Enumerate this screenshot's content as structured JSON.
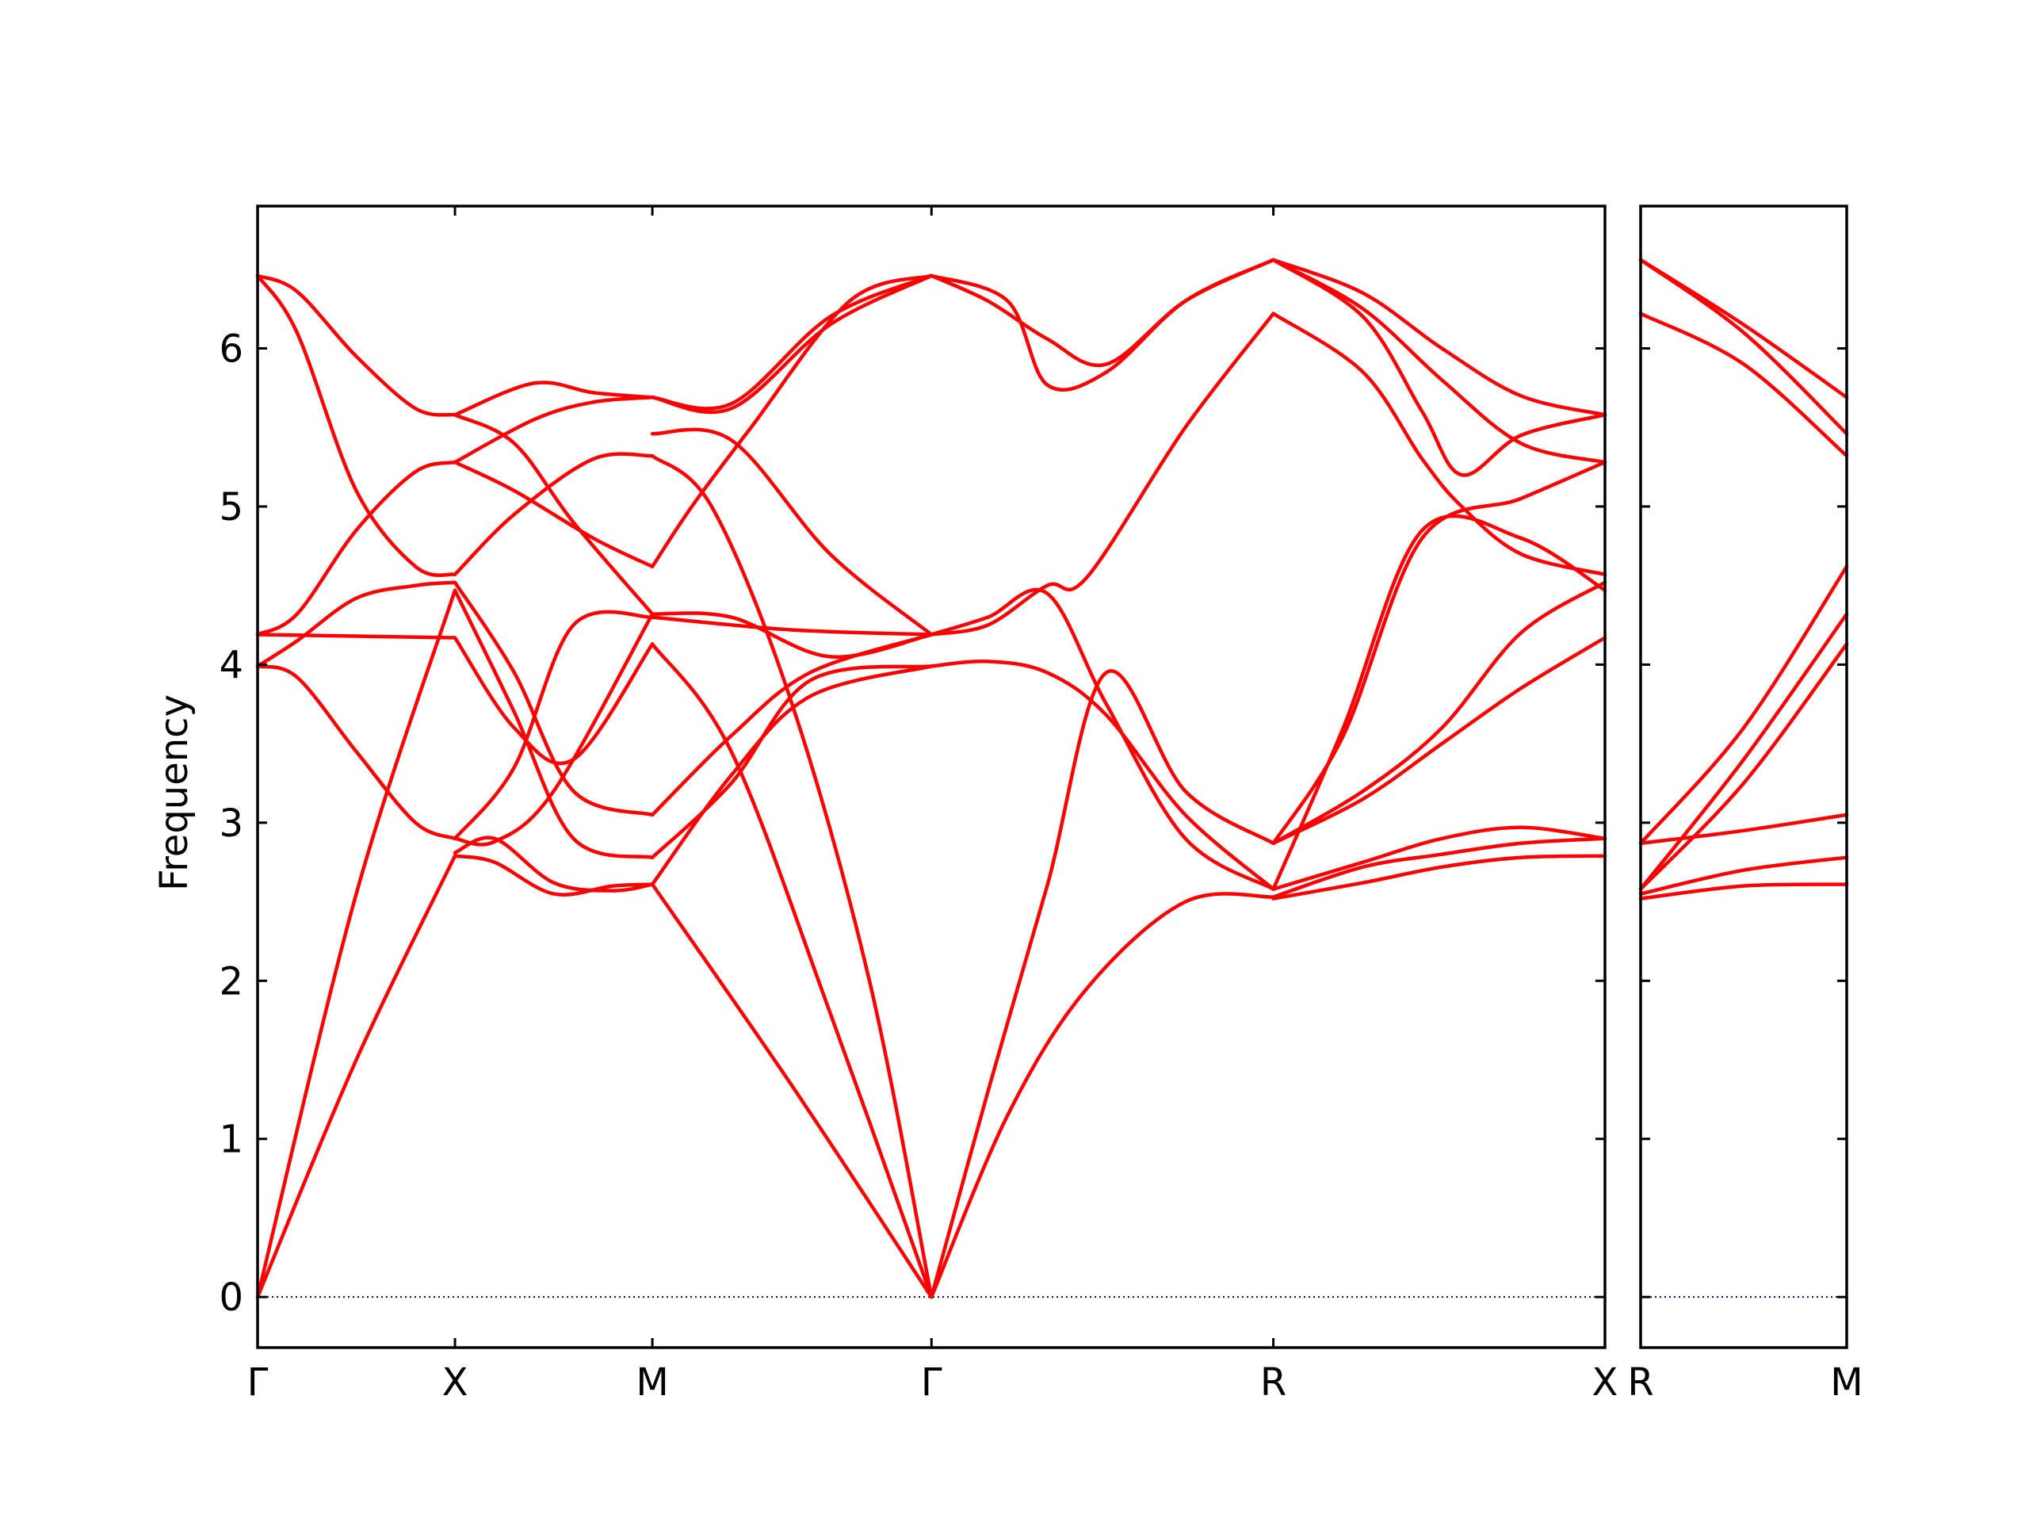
{
  "chart_data": {
    "type": "line",
    "ylabel": "Frequency",
    "ylim": [
      -0.32,
      6.9
    ],
    "yticks": [
      0,
      1,
      2,
      3,
      4,
      5,
      6
    ],
    "colors": {
      "bands": "#ff0000",
      "zero_line": "#00008b"
    },
    "panels": [
      {
        "name": "main",
        "xlim": [
          0,
          3.413
        ],
        "path_labels": [
          {
            "pos": 0,
            "label": "Γ"
          },
          {
            "pos": 0.5,
            "label": "X"
          },
          {
            "pos": 1.0,
            "label": "M"
          },
          {
            "pos": 1.707,
            "label": "Γ"
          },
          {
            "pos": 2.573,
            "label": "R"
          },
          {
            "pos": 3.413,
            "label": "X"
          }
        ],
        "series": [
          {
            "x": [
              0,
              0.25,
              0.5
            ],
            "y": [
              0,
              1.5,
              2.79
            ]
          },
          {
            "x": [
              0,
              0.25,
              0.5
            ],
            "y": [
              0,
              2.55,
              4.47
            ]
          },
          {
            "x": [
              0,
              0.1,
              0.25,
              0.4,
              0.5
            ],
            "y": [
              3.99,
              3.92,
              3.45,
              3.0,
              2.9
            ]
          },
          {
            "x": [
              0,
              0.1,
              0.25,
              0.4,
              0.5
            ],
            "y": [
              3.99,
              4.15,
              4.42,
              4.5,
              4.52
            ]
          },
          {
            "x": [
              0,
              0.25,
              0.5
            ],
            "y": [
              4.19,
              4.18,
              4.17
            ]
          },
          {
            "x": [
              0,
              0.1,
              0.25,
              0.4,
              0.5
            ],
            "y": [
              4.19,
              4.32,
              4.85,
              5.22,
              5.28
            ]
          },
          {
            "x": [
              0,
              0.1,
              0.25,
              0.4,
              0.5
            ],
            "y": [
              6.46,
              6.1,
              5.1,
              4.62,
              4.57
            ]
          },
          {
            "x": [
              0,
              0.1,
              0.25,
              0.4,
              0.5
            ],
            "y": [
              6.46,
              6.36,
              5.95,
              5.62,
              5.58
            ]
          },
          {
            "x": [
              0.5,
              0.6,
              0.75,
              0.9,
              1.0
            ],
            "y": [
              2.79,
              2.75,
              2.55,
              2.6,
              2.61
            ]
          },
          {
            "x": [
              0.5,
              0.6,
              0.75,
              0.9,
              1.0
            ],
            "y": [
              2.81,
              2.9,
              2.62,
              2.57,
              2.61
            ]
          },
          {
            "x": [
              0.5,
              0.65,
              0.8,
              1.0
            ],
            "y": [
              2.9,
              3.35,
              4.25,
              4.3
            ]
          },
          {
            "x": [
              0.5,
              0.65,
              0.8,
              1.0
            ],
            "y": [
              4.47,
              3.7,
              2.9,
              2.78
            ]
          },
          {
            "x": [
              0.5,
              0.65,
              0.8,
              1.0
            ],
            "y": [
              4.52,
              3.95,
              3.2,
              3.05
            ]
          },
          {
            "x": [
              0.5,
              0.65,
              0.8,
              1.0
            ],
            "y": [
              4.17,
              3.6,
              3.4,
              4.13
            ]
          },
          {
            "x": [
              0.5,
              0.65,
              0.85,
              1.0
            ],
            "y": [
              4.57,
              4.95,
              5.3,
              5.32
            ]
          },
          {
            "x": [
              0.5,
              0.65,
              0.85,
              1.0
            ],
            "y": [
              5.28,
              5.1,
              4.8,
              4.62
            ]
          },
          {
            "x": [
              0.5,
              0.7,
              0.85,
              1.0
            ],
            "y": [
              5.28,
              5.55,
              5.66,
              5.69
            ]
          },
          {
            "x": [
              0.5,
              0.7,
              0.85,
              1.0
            ],
            "y": [
              5.58,
              5.78,
              5.72,
              5.69
            ]
          },
          {
            "x": [
              0.5,
              0.65,
              0.8,
              1.0
            ],
            "y": [
              5.58,
              5.4,
              4.9,
              4.32
            ]
          },
          {
            "x": [
              0.5,
              0.6,
              0.75,
              1.0
            ],
            "y": [
              2.9,
              2.88,
              3.2,
              4.32
            ]
          },
          {
            "x": [
              1.0,
              1.35,
              1.707
            ],
            "y": [
              2.61,
              1.35,
              0
            ]
          },
          {
            "x": [
              1.0,
              1.2,
              1.45,
              1.707
            ],
            "y": [
              4.13,
              3.45,
              1.8,
              0
            ]
          },
          {
            "x": [
              1.0,
              1.15,
              1.35,
              1.55,
              1.707
            ],
            "y": [
              5.32,
              5.0,
              3.78,
              2.0,
              0
            ]
          },
          {
            "x": [
              1.0,
              1.2,
              1.4,
              1.707
            ],
            "y": [
              2.61,
              3.3,
              3.8,
              3.99
            ]
          },
          {
            "x": [
              1.0,
              1.2,
              1.4,
              1.707
            ],
            "y": [
              2.78,
              3.25,
              3.9,
              3.99
            ]
          },
          {
            "x": [
              1.0,
              1.2,
              1.4,
              1.707
            ],
            "y": [
              3.05,
              3.55,
              3.95,
              4.19
            ]
          },
          {
            "x": [
              1.0,
              1.35,
              1.707
            ],
            "y": [
              4.3,
              4.22,
              4.19
            ]
          },
          {
            "x": [
              1.0,
              1.2,
              1.45,
              1.707
            ],
            "y": [
              4.32,
              4.3,
              4.05,
              4.19
            ]
          },
          {
            "x": [
              1.0,
              1.1,
              1.25,
              1.5,
              1.707
            ],
            "y": [
              4.62,
              5.0,
              5.5,
              6.3,
              6.46
            ]
          },
          {
            "x": [
              1.0,
              1.2,
              1.45,
              1.707
            ],
            "y": [
              5.46,
              5.42,
              4.7,
              4.19
            ]
          },
          {
            "x": [
              1.0,
              1.2,
              1.45,
              1.707
            ],
            "y": [
              5.69,
              5.62,
              6.15,
              6.46
            ]
          },
          {
            "x": [
              1.0,
              1.2,
              1.45,
              1.707
            ],
            "y": [
              5.69,
              5.65,
              6.2,
              6.46
            ]
          },
          {
            "x": [
              1.707,
              1.85,
              2.0,
              2.15,
              2.35,
              2.573
            ],
            "y": [
              0,
              1.3,
              2.6,
              3.95,
              3.2,
              2.87
            ]
          },
          {
            "x": [
              1.707,
              1.9,
              2.1,
              2.35,
              2.573
            ],
            "y": [
              0,
              1.15,
              1.95,
              2.5,
              2.53
            ]
          },
          {
            "x": [
              1.707,
              1.85,
              2.0,
              2.15,
              2.35,
              2.573
            ],
            "y": [
              3.99,
              4.02,
              3.95,
              3.68,
              3.05,
              2.58
            ]
          },
          {
            "x": [
              1.707,
              1.85,
              2.0,
              2.15,
              2.35,
              2.573
            ],
            "y": [
              4.19,
              4.3,
              4.45,
              3.75,
              2.9,
              2.58
            ]
          },
          {
            "x": [
              1.707,
              1.85,
              2.0,
              2.1,
              2.35,
              2.573
            ],
            "y": [
              4.19,
              4.25,
              4.5,
              4.55,
              5.5,
              6.22
            ]
          },
          {
            "x": [
              1.707,
              1.85,
              2.0,
              2.15,
              2.35,
              2.573
            ],
            "y": [
              6.46,
              6.3,
              6.06,
              5.9,
              6.3,
              6.56
            ]
          },
          {
            "x": [
              1.707,
              1.9,
              2.0,
              2.15,
              2.35,
              2.573
            ],
            "y": [
              6.46,
              6.3,
              5.77,
              5.85,
              6.3,
              6.56
            ]
          },
          {
            "x": [
              2.573,
              2.8,
              3.0,
              3.2,
              3.413
            ],
            "y": [
              2.52,
              2.62,
              2.72,
              2.78,
              2.79
            ]
          },
          {
            "x": [
              2.573,
              2.8,
              3.0,
              3.2,
              3.413
            ],
            "y": [
              2.53,
              2.72,
              2.8,
              2.87,
              2.9
            ]
          },
          {
            "x": [
              2.573,
              2.8,
              3.0,
              3.2,
              3.413
            ],
            "y": [
              2.58,
              2.75,
              2.9,
              2.97,
              2.9
            ]
          },
          {
            "x": [
              2.573,
              2.75,
              2.95,
              3.2,
              3.413
            ],
            "y": [
              2.58,
              3.6,
              4.85,
              4.8,
              4.47
            ]
          },
          {
            "x": [
              2.573,
              2.75,
              2.95,
              3.2,
              3.413
            ],
            "y": [
              2.87,
              3.55,
              4.8,
              5.05,
              5.28
            ]
          },
          {
            "x": [
              2.573,
              2.8,
              3.0,
              3.2,
              3.413
            ],
            "y": [
              2.87,
              3.2,
              3.6,
              4.2,
              4.52
            ]
          },
          {
            "x": [
              2.573,
              2.8,
              3.0,
              3.2,
              3.413
            ],
            "y": [
              2.87,
              3.15,
              3.5,
              3.85,
              4.17
            ]
          },
          {
            "x": [
              2.573,
              2.8,
              2.95,
              3.05,
              3.2,
              3.413
            ],
            "y": [
              6.22,
              5.85,
              5.3,
              5.0,
              4.7,
              4.57
            ]
          },
          {
            "x": [
              2.573,
              2.8,
              2.95,
              3.05,
              3.2,
              3.413
            ],
            "y": [
              6.56,
              6.2,
              5.6,
              5.2,
              5.45,
              5.58
            ]
          },
          {
            "x": [
              2.573,
              2.8,
              3.0,
              3.2,
              3.413
            ],
            "y": [
              6.56,
              6.25,
              5.8,
              5.4,
              5.28
            ]
          },
          {
            "x": [
              2.573,
              2.8,
              3.0,
              3.2,
              3.413
            ],
            "y": [
              6.56,
              6.35,
              6.0,
              5.7,
              5.58
            ]
          }
        ]
      },
      {
        "name": "side",
        "xlim": [
          0,
          0.5
        ],
        "path_labels": [
          {
            "pos": 0,
            "label": "R"
          },
          {
            "pos": 0.5,
            "label": "M"
          }
        ],
        "series": [
          {
            "x": [
              0,
              0.25,
              0.5
            ],
            "y": [
              2.52,
              2.6,
              2.61
            ]
          },
          {
            "x": [
              0,
              0.25,
              0.5
            ],
            "y": [
              2.55,
              2.7,
              2.78
            ]
          },
          {
            "x": [
              0,
              0.25,
              0.5
            ],
            "y": [
              2.58,
              3.4,
              4.32
            ]
          },
          {
            "x": [
              0,
              0.25,
              0.5
            ],
            "y": [
              2.58,
              3.25,
              4.13
            ]
          },
          {
            "x": [
              0,
              0.25,
              0.5
            ],
            "y": [
              2.87,
              2.95,
              3.05
            ]
          },
          {
            "x": [
              0,
              0.25,
              0.5
            ],
            "y": [
              2.87,
              3.6,
              4.62
            ]
          },
          {
            "x": [
              0,
              0.25,
              0.5
            ],
            "y": [
              6.22,
              5.9,
              5.32
            ]
          },
          {
            "x": [
              0,
              0.25,
              0.5
            ],
            "y": [
              6.56,
              6.1,
              5.46
            ]
          },
          {
            "x": [
              0,
              0.25,
              0.5
            ],
            "y": [
              6.56,
              6.15,
              5.69
            ]
          }
        ]
      }
    ]
  }
}
